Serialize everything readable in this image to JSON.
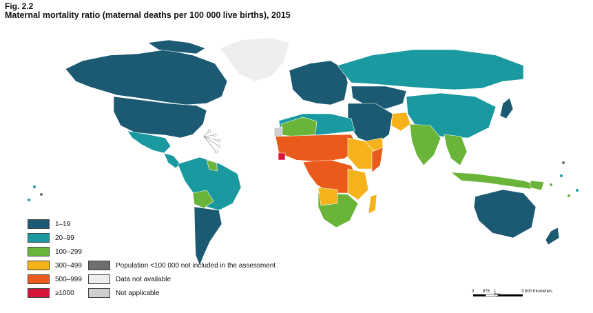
{
  "figure": {
    "number": "Fig. 2.2",
    "title": "Maternal mortality ratio (maternal deaths per 100 000 live births), 2015"
  },
  "legend": {
    "ranges": [
      {
        "label": "1–19",
        "color": "#1b5a72"
      },
      {
        "label": "20–99",
        "color": "#1a9aa0"
      },
      {
        "label": "100–299",
        "color": "#6ab43a"
      },
      {
        "label": "300–499",
        "color": "#f5b21b"
      },
      {
        "label": "500–999",
        "color": "#ea5a1a"
      },
      {
        "label": "≥1000",
        "color": "#d8143a"
      }
    ],
    "other": [
      {
        "label": "Population <100 000 not included in the assessment",
        "color": "#6e6e70"
      },
      {
        "label": "Data not available",
        "color": "#eeeeee"
      },
      {
        "label": "Not applicable",
        "color": "#cfcfcf"
      }
    ]
  },
  "scale_bar": {
    "ticks": [
      "0",
      "875",
      "1 750",
      "3 500 Kilometers"
    ]
  }
}
